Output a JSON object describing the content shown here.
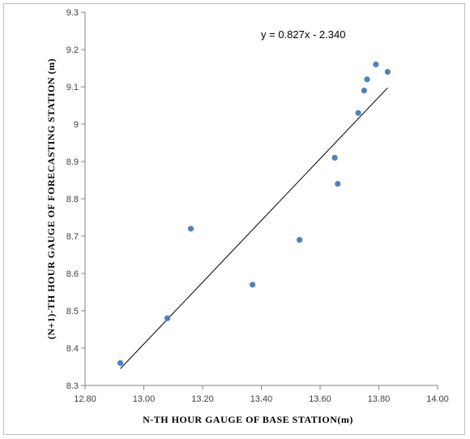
{
  "chart_data": {
    "type": "scatter",
    "title": "",
    "xlabel": "N-TH  HOUR  GAUGE  OF  BASE  STATION(m)",
    "ylabel": "(N+1)-TH  HOUR  GAUGE  OF FORECASTING  STATION  (m)",
    "xlim": [
      12.8,
      14.0
    ],
    "ylim": [
      8.3,
      9.3
    ],
    "x_ticks": [
      "12.80",
      "13.00",
      "13.20",
      "13.40",
      "13.60",
      "13.80",
      "14.00"
    ],
    "y_ticks": [
      "8.3",
      "8.4",
      "8.5",
      "8.6",
      "8.7",
      "8.8",
      "8.9",
      "9",
      "9.1",
      "9.2",
      "9.3"
    ],
    "grid": false,
    "points": [
      {
        "x": 12.92,
        "y": 8.36
      },
      {
        "x": 13.08,
        "y": 8.48
      },
      {
        "x": 13.16,
        "y": 8.72
      },
      {
        "x": 13.37,
        "y": 8.57
      },
      {
        "x": 13.53,
        "y": 8.69
      },
      {
        "x": 13.65,
        "y": 8.91
      },
      {
        "x": 13.66,
        "y": 8.84
      },
      {
        "x": 13.73,
        "y": 9.03
      },
      {
        "x": 13.75,
        "y": 9.09
      },
      {
        "x": 13.76,
        "y": 9.12
      },
      {
        "x": 13.79,
        "y": 9.16
      },
      {
        "x": 13.83,
        "y": 9.14
      }
    ],
    "trendline": {
      "equation": "y = 0.827x - 2.340",
      "slope": 0.827,
      "intercept": -2.34,
      "x_start": 12.92,
      "x_end": 13.83
    },
    "colors": {
      "point": "#4f81bd",
      "trendline": "#000000",
      "axis": "#808080"
    }
  }
}
